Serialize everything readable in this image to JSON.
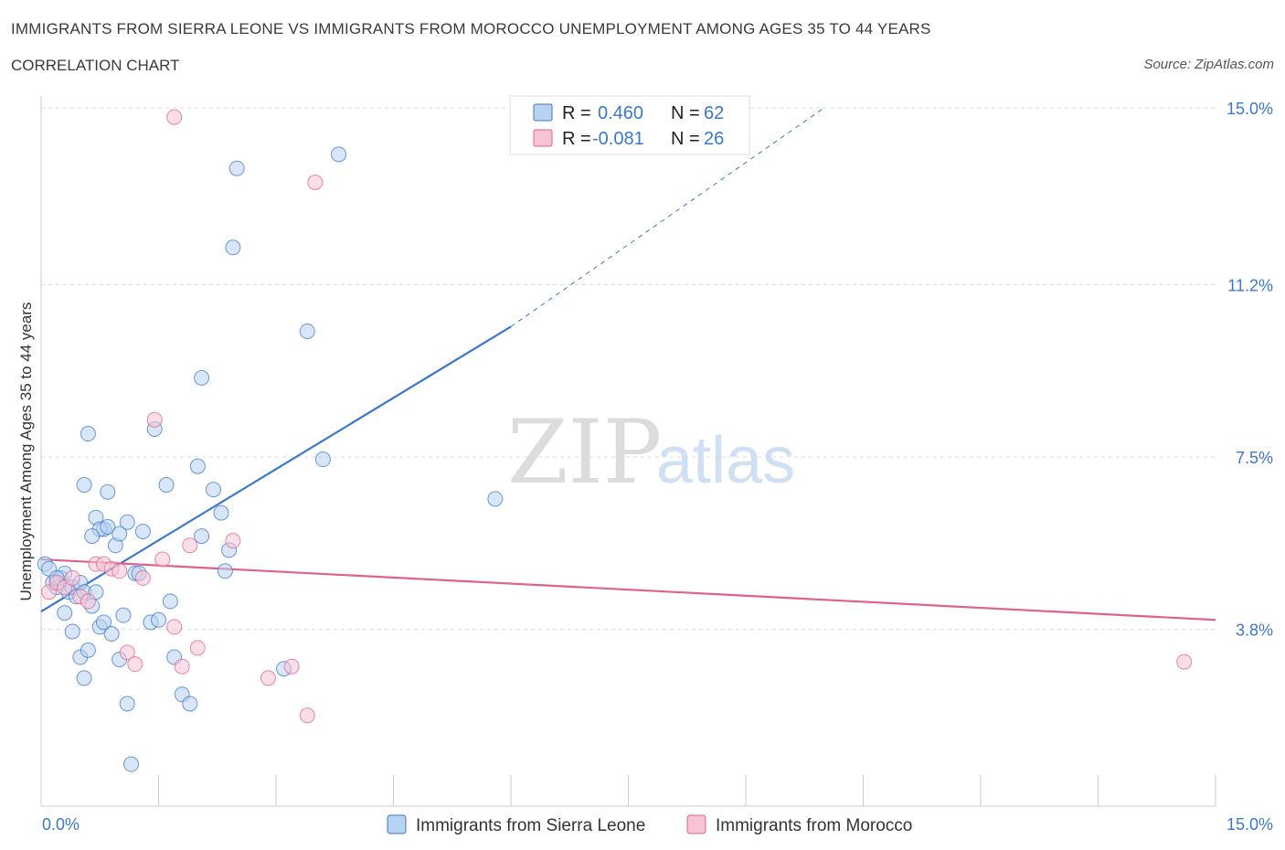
{
  "header": {
    "title": "IMMIGRANTS FROM SIERRA LEONE VS IMMIGRANTS FROM MOROCCO UNEMPLOYMENT AMONG AGES 35 TO 44 YEARS",
    "subtitle": "CORRELATION CHART",
    "source": "Source: ZipAtlas.com"
  },
  "watermark": {
    "zip": "ZIP",
    "atlas": "atlas"
  },
  "colors": {
    "sierra_leone": "#3b78c9",
    "sierra_leone_fill": "#b8d2f2",
    "morocco": "#e0608e",
    "morocco_fill": "#f7c4d6",
    "axis_label": "#3b78c9",
    "grid": "#dddddd"
  },
  "legend": {
    "r_label": "R =",
    "n_label": "N =",
    "rows": [
      {
        "r": "0.460",
        "n": "62"
      },
      {
        "r": "-0.081",
        "n": "26"
      }
    ]
  },
  "chart_data": {
    "type": "scatter",
    "title": "IMMIGRANTS FROM SIERRA LEONE VS IMMIGRANTS FROM MOROCCO UNEMPLOYMENT AMONG AGES 35 TO 44 YEARS",
    "xlabel": "",
    "ylabel": "Unemployment Among Ages 35 to 44 years",
    "xlim": [
      0,
      15
    ],
    "ylim": [
      0,
      15
    ],
    "x_tick_labels": [
      "0.0%",
      "15.0%"
    ],
    "y_ticks": [
      3.8,
      7.5,
      11.2,
      15.0
    ],
    "y_tick_labels": [
      "3.8%",
      "7.5%",
      "11.2%",
      "15.0%"
    ],
    "grid": true,
    "legend_position": "top-center",
    "series": [
      {
        "name": "Immigrants from Sierra Leone",
        "r": 0.46,
        "n": 62,
        "trend": {
          "x0": 0.0,
          "y0": 4.18,
          "x1": 6.0,
          "y1": 10.3,
          "dashed_to_x": 10.0,
          "dashed_to_y": 15.0
        },
        "points": [
          [
            0.05,
            5.2
          ],
          [
            0.1,
            5.1
          ],
          [
            0.15,
            4.8
          ],
          [
            0.2,
            4.7
          ],
          [
            0.25,
            4.9
          ],
          [
            0.3,
            5.0
          ],
          [
            0.35,
            4.6
          ],
          [
            0.4,
            4.7
          ],
          [
            0.45,
            4.5
          ],
          [
            0.5,
            4.8
          ],
          [
            0.55,
            4.6
          ],
          [
            0.2,
            4.9
          ],
          [
            0.3,
            4.15
          ],
          [
            0.4,
            3.75
          ],
          [
            0.5,
            3.2
          ],
          [
            0.55,
            2.75
          ],
          [
            0.6,
            3.35
          ],
          [
            0.65,
            4.3
          ],
          [
            0.7,
            4.6
          ],
          [
            0.75,
            3.85
          ],
          [
            0.8,
            3.95
          ],
          [
            0.85,
            6.75
          ],
          [
            0.9,
            3.7
          ],
          [
            0.95,
            5.6
          ],
          [
            1.0,
            3.15
          ],
          [
            1.05,
            4.1
          ],
          [
            1.1,
            2.2
          ],
          [
            1.15,
            0.9
          ],
          [
            1.2,
            5.0
          ],
          [
            1.25,
            5.0
          ],
          [
            1.3,
            5.9
          ],
          [
            1.4,
            3.95
          ],
          [
            1.5,
            4.0
          ],
          [
            1.6,
            6.9
          ],
          [
            1.65,
            4.4
          ],
          [
            1.7,
            3.2
          ],
          [
            1.8,
            2.4
          ],
          [
            1.9,
            2.2
          ],
          [
            2.0,
            7.3
          ],
          [
            2.05,
            5.8
          ],
          [
            2.2,
            6.8
          ],
          [
            2.3,
            6.3
          ],
          [
            2.35,
            5.05
          ],
          [
            2.4,
            5.5
          ],
          [
            2.5,
            13.7
          ],
          [
            2.45,
            12.0
          ],
          [
            0.55,
            6.9
          ],
          [
            0.6,
            8.0
          ],
          [
            0.7,
            6.2
          ],
          [
            0.8,
            5.95
          ],
          [
            0.75,
            5.95
          ],
          [
            0.85,
            6.0
          ],
          [
            1.1,
            6.1
          ],
          [
            1.0,
            5.85
          ],
          [
            1.45,
            8.1
          ],
          [
            2.05,
            9.2
          ],
          [
            3.1,
            2.95
          ],
          [
            3.4,
            10.2
          ],
          [
            3.6,
            7.45
          ],
          [
            3.8,
            14.0
          ],
          [
            5.8,
            6.6
          ],
          [
            0.65,
            5.8
          ]
        ]
      },
      {
        "name": "Immigrants from Morocco",
        "r": -0.081,
        "n": 26,
        "trend": {
          "x0": 0.0,
          "y0": 5.3,
          "x1": 15.0,
          "y1": 4.0
        },
        "points": [
          [
            0.1,
            4.6
          ],
          [
            0.2,
            4.8
          ],
          [
            0.3,
            4.7
          ],
          [
            0.4,
            4.9
          ],
          [
            0.5,
            4.5
          ],
          [
            0.6,
            4.4
          ],
          [
            0.7,
            5.2
          ],
          [
            0.8,
            5.2
          ],
          [
            0.9,
            5.1
          ],
          [
            1.0,
            5.05
          ],
          [
            1.1,
            3.3
          ],
          [
            1.2,
            3.05
          ],
          [
            1.3,
            4.9
          ],
          [
            1.45,
            8.3
          ],
          [
            1.55,
            5.3
          ],
          [
            1.7,
            3.85
          ],
          [
            1.8,
            3.0
          ],
          [
            1.9,
            5.6
          ],
          [
            2.0,
            3.4
          ],
          [
            2.45,
            5.7
          ],
          [
            2.9,
            2.75
          ],
          [
            3.2,
            3.0
          ],
          [
            3.4,
            1.95
          ],
          [
            3.5,
            13.4
          ],
          [
            1.7,
            14.8
          ],
          [
            14.6,
            3.1
          ]
        ]
      }
    ]
  },
  "bottom_legend": [
    {
      "label": "Immigrants from Sierra Leone"
    },
    {
      "label": "Immigrants from Morocco"
    }
  ]
}
